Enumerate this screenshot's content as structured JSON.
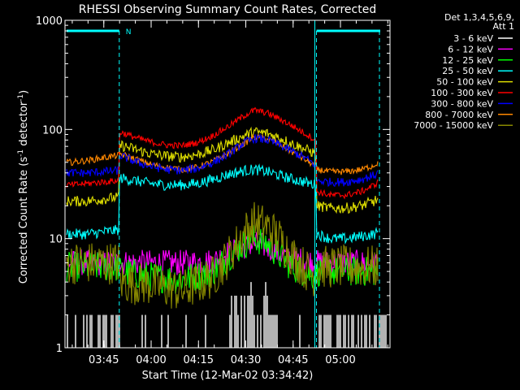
{
  "chart_data": {
    "type": "line",
    "title": "RHESSI Observing Summary Count Rates, Corrected",
    "xlabel": "Start Time (12-Mar-02 03:34:42)",
    "ylabel_main": "Corrected Count Rate (s",
    "ylabel_mid": " detector",
    "ylabel_end": ")",
    "ylabel_exp": "-1",
    "y_scale": "log",
    "ylim": [
      1,
      1000
    ],
    "xlim_minutes": [
      -2,
      101
    ],
    "x_ticks": [
      {
        "label": "03:45",
        "minute": 10.3
      },
      {
        "label": "04:00",
        "minute": 25.3
      },
      {
        "label": "04:15",
        "minute": 40.3
      },
      {
        "label": "04:30",
        "minute": 55.3
      },
      {
        "label": "04:45",
        "minute": 70.3
      },
      {
        "label": "05:00",
        "minute": 85.3
      }
    ],
    "y_ticks": [
      {
        "label": "1",
        "value": 1
      },
      {
        "label": "10",
        "value": 10
      },
      {
        "label": "100",
        "value": 100
      },
      {
        "label": "1000",
        "value": 1000
      }
    ],
    "legend": {
      "placement": "right",
      "header": [
        "Det 1,3,4,5,6,9,",
        "Att 1"
      ]
    },
    "night_marker": {
      "label": "N",
      "start_minute": 15.2,
      "end_minute": 77.7,
      "level": 800
    },
    "series": [
      {
        "name": "3 - 6 keV",
        "color": "#ffffff",
        "key": "s1"
      },
      {
        "name": "6 - 12 keV",
        "color": "#ff00ff",
        "key": "s2"
      },
      {
        "name": "12 - 25 keV",
        "color": "#00ff00",
        "key": "s3"
      },
      {
        "name": "25 - 50 keV",
        "color": "#00ffff",
        "key": "s4"
      },
      {
        "name": "50 - 100 keV",
        "color": "#dddd00",
        "key": "s5"
      },
      {
        "name": "100 - 300 keV",
        "color": "#ff0000",
        "key": "s6"
      },
      {
        "name": "300 - 800 keV",
        "color": "#0000ff",
        "key": "s7"
      },
      {
        "name": "800 - 7000 keV",
        "color": "#ff8800",
        "key": "s8"
      },
      {
        "name": "7000 - 15000 keV",
        "color": "#888800",
        "key": "s9"
      }
    ],
    "series_values": {
      "s6": [
        [
          0,
          31
        ],
        [
          5,
          32
        ],
        [
          10,
          33
        ],
        [
          15,
          34
        ],
        [
          15.3,
          95
        ],
        [
          20,
          85
        ],
        [
          25,
          77
        ],
        [
          30,
          72
        ],
        [
          35,
          71
        ],
        [
          40,
          76
        ],
        [
          45,
          88
        ],
        [
          50,
          108
        ],
        [
          55,
          135
        ],
        [
          58,
          150
        ],
        [
          62,
          142
        ],
        [
          66,
          125
        ],
        [
          70,
          108
        ],
        [
          74,
          92
        ],
        [
          77.5,
          80
        ],
        [
          77.8,
          27
        ],
        [
          82,
          25
        ],
        [
          87,
          25
        ],
        [
          92,
          27
        ],
        [
          96,
          31
        ],
        [
          99,
          36
        ]
      ],
      "s7": [
        [
          0,
          40
        ],
        [
          5,
          40
        ],
        [
          10,
          41
        ],
        [
          15,
          42
        ],
        [
          15.3,
          58
        ],
        [
          20,
          51
        ],
        [
          25,
          46
        ],
        [
          30,
          43
        ],
        [
          35,
          42
        ],
        [
          40,
          44
        ],
        [
          45,
          50
        ],
        [
          50,
          60
        ],
        [
          55,
          76
        ],
        [
          58,
          83
        ],
        [
          62,
          80
        ],
        [
          66,
          72
        ],
        [
          70,
          63
        ],
        [
          74,
          55
        ],
        [
          77.5,
          47
        ],
        [
          77.8,
          34
        ],
        [
          82,
          33
        ],
        [
          87,
          33
        ],
        [
          92,
          35
        ],
        [
          96,
          38
        ],
        [
          99,
          43
        ]
      ],
      "s8": [
        [
          0,
          50
        ],
        [
          5,
          52
        ],
        [
          10,
          55
        ],
        [
          15,
          58
        ],
        [
          15.3,
          60
        ],
        [
          20,
          54
        ],
        [
          25,
          48
        ],
        [
          30,
          45
        ],
        [
          35,
          43
        ],
        [
          40,
          45
        ],
        [
          45,
          51
        ],
        [
          50,
          61
        ],
        [
          55,
          75
        ],
        [
          58,
          85
        ],
        [
          62,
          82
        ],
        [
          66,
          73
        ],
        [
          70,
          62
        ],
        [
          74,
          53
        ],
        [
          77.5,
          46
        ],
        [
          77.8,
          43
        ],
        [
          82,
          41
        ],
        [
          87,
          41
        ],
        [
          92,
          43
        ],
        [
          96,
          47
        ],
        [
          99,
          55
        ]
      ],
      "s5": [
        [
          0,
          22
        ],
        [
          5,
          22
        ],
        [
          10,
          23
        ],
        [
          15,
          24
        ],
        [
          15.3,
          72
        ],
        [
          20,
          66
        ],
        [
          25,
          60
        ],
        [
          30,
          57
        ],
        [
          35,
          56
        ],
        [
          40,
          59
        ],
        [
          45,
          65
        ],
        [
          50,
          76
        ],
        [
          55,
          88
        ],
        [
          58,
          95
        ],
        [
          62,
          92
        ],
        [
          66,
          84
        ],
        [
          70,
          74
        ],
        [
          74,
          66
        ],
        [
          77.5,
          60
        ],
        [
          77.8,
          20
        ],
        [
          82,
          19
        ],
        [
          87,
          19
        ],
        [
          92,
          20
        ],
        [
          96,
          22
        ],
        [
          99,
          24
        ]
      ],
      "s4": [
        [
          0,
          11
        ],
        [
          5,
          11
        ],
        [
          10,
          11.5
        ],
        [
          15,
          12
        ],
        [
          15.3,
          36
        ],
        [
          20,
          34
        ],
        [
          25,
          32
        ],
        [
          30,
          31
        ],
        [
          35,
          31
        ],
        [
          40,
          32
        ],
        [
          45,
          35
        ],
        [
          50,
          39
        ],
        [
          55,
          42
        ],
        [
          58,
          43
        ],
        [
          62,
          41
        ],
        [
          66,
          38
        ],
        [
          70,
          35
        ],
        [
          74,
          33
        ],
        [
          77.5,
          31
        ],
        [
          77.8,
          11
        ],
        [
          82,
          10
        ],
        [
          87,
          10
        ],
        [
          92,
          10.5
        ],
        [
          96,
          11
        ],
        [
          99,
          12
        ]
      ],
      "s2": [
        [
          0,
          6
        ],
        [
          5,
          6
        ],
        [
          10,
          6
        ],
        [
          15,
          6
        ],
        [
          15.3,
          6
        ],
        [
          25,
          6
        ],
        [
          35,
          6
        ],
        [
          45,
          6.2
        ],
        [
          50,
          7.5
        ],
        [
          55,
          8.5
        ],
        [
          58,
          9
        ],
        [
          62,
          8.5
        ],
        [
          66,
          7.3
        ],
        [
          70,
          6.5
        ],
        [
          75,
          6.2
        ],
        [
          77.5,
          6
        ],
        [
          82,
          6
        ],
        [
          90,
          6
        ],
        [
          99,
          6
        ]
      ],
      "s3": [
        [
          0,
          5.5
        ],
        [
          5,
          5.5
        ],
        [
          10,
          5.5
        ],
        [
          15,
          5.5
        ],
        [
          15.3,
          5
        ],
        [
          25,
          4.5
        ],
        [
          35,
          4.2
        ],
        [
          45,
          5
        ],
        [
          50,
          7
        ],
        [
          55,
          9
        ],
        [
          58,
          10
        ],
        [
          62,
          9
        ],
        [
          66,
          7
        ],
        [
          70,
          5.5
        ],
        [
          75,
          4.8
        ],
        [
          77.5,
          4.5
        ],
        [
          77.8,
          5
        ],
        [
          85,
          5
        ],
        [
          92,
          5
        ],
        [
          99,
          5
        ]
      ],
      "s9": [
        [
          0,
          6
        ],
        [
          5,
          6
        ],
        [
          10,
          6
        ],
        [
          15,
          6
        ],
        [
          15.3,
          4
        ],
        [
          25,
          3.8
        ],
        [
          35,
          3.3
        ],
        [
          45,
          4.5
        ],
        [
          50,
          7
        ],
        [
          55,
          11.5
        ],
        [
          58,
          14
        ],
        [
          62,
          13
        ],
        [
          66,
          10
        ],
        [
          70,
          7
        ],
        [
          75,
          5
        ],
        [
          77.5,
          4.5
        ],
        [
          77.8,
          5.5
        ],
        [
          85,
          5.5
        ],
        [
          92,
          5.5
        ],
        [
          99,
          5.5
        ]
      ]
    }
  }
}
